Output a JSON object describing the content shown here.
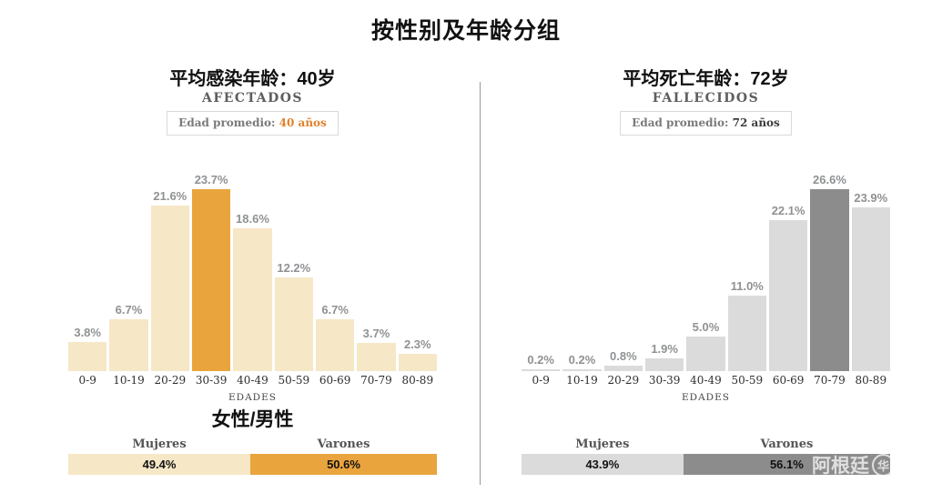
{
  "page": {
    "title": "按性别及年龄分组"
  },
  "watermark": {
    "text": "阿根廷",
    "logo_char": "华"
  },
  "colors": {
    "affected_bar": "#F6E7C7",
    "affected_highlight": "#E9A43D",
    "deceased_bar": "#DBDBDB",
    "deceased_highlight": "#8C8C8C",
    "value_label": "#8F9193",
    "divider": "#9A9A9A"
  },
  "chart_data": [
    {
      "id": "afectados",
      "type": "bar",
      "subtitle": "平均感染年龄：40岁",
      "section_label": "AFECTADOS",
      "badge_label": "Edad promedio:",
      "badge_value": "40 años",
      "badge_value_color": "#E0822B",
      "categories": [
        "0-9",
        "10-19",
        "20-29",
        "30-39",
        "40-49",
        "50-59",
        "60-69",
        "70-79",
        "80-89"
      ],
      "values": [
        3.8,
        6.7,
        21.6,
        23.7,
        18.6,
        12.2,
        6.7,
        3.7,
        2.3
      ],
      "value_labels": [
        "3.8%",
        "6.7%",
        "21.6%",
        "23.7%",
        "18.6%",
        "12.2%",
        "6.7%",
        "3.7%",
        "2.3%"
      ],
      "highlight_index": 3,
      "xlabel": "EDADES",
      "ylim": [
        0,
        23.7
      ],
      "bar_color": "#F6E7C7",
      "highlight_color": "#E9A43D",
      "gender_title": "女性/男性",
      "gender": {
        "labels": [
          "Mujeres",
          "Varones"
        ],
        "values": [
          49.4,
          50.6
        ],
        "display": [
          "49.4%",
          "50.6%"
        ],
        "colors": [
          "#F6E7C7",
          "#E9A43D"
        ]
      }
    },
    {
      "id": "fallecidos",
      "type": "bar",
      "subtitle": "平均死亡年龄：72岁",
      "section_label": "FALLECIDOS",
      "badge_label": "Edad promedio:",
      "badge_value": "72 años",
      "badge_value_color": "#3C3C3C",
      "categories": [
        "0-9",
        "10-19",
        "20-29",
        "30-39",
        "40-49",
        "50-59",
        "60-69",
        "70-79",
        "80-89"
      ],
      "values": [
        0.2,
        0.2,
        0.8,
        1.9,
        5.0,
        11.0,
        22.1,
        26.6,
        23.9
      ],
      "value_labels": [
        "0.2%",
        "0.2%",
        "0.8%",
        "1.9%",
        "5.0%",
        "11.0%",
        "22.1%",
        "26.6%",
        "23.9%"
      ],
      "highlight_index": 7,
      "xlabel": "EDADES",
      "ylim": [
        0,
        26.6
      ],
      "bar_color": "#DBDBDB",
      "highlight_color": "#8C8C8C",
      "gender_title": null,
      "gender": {
        "labels": [
          "Mujeres",
          "Varones"
        ],
        "values": [
          43.9,
          56.1
        ],
        "display": [
          "43.9%",
          "56.1%"
        ],
        "colors": [
          "#DBDBDB",
          "#8C8C8C"
        ]
      }
    }
  ]
}
